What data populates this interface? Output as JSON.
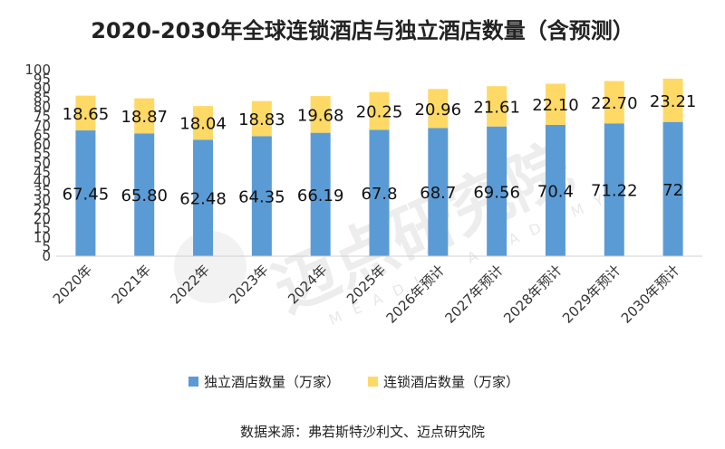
{
  "chart_data": {
    "type": "bar",
    "stacked": true,
    "title": "2020-2030年全球连锁酒店与独立酒店数量（含预测）",
    "categories": [
      "2020年",
      "2021年",
      "2022年",
      "2023年",
      "2024年",
      "2025年",
      "2026年预计",
      "2027年预计",
      "2028年预计",
      "2029年预计",
      "2030年预计"
    ],
    "series": [
      {
        "name": "独立酒店数量（万家）",
        "color": "#5b9bd5",
        "values": [
          67.45,
          65.8,
          62.48,
          64.35,
          66.19,
          67.8,
          68.7,
          69.56,
          70.4,
          71.22,
          72
        ],
        "labels": [
          "67.45",
          "65.80",
          "62.48",
          "64.35",
          "66.19",
          "67.8",
          "68.7",
          "69.56",
          "70.4",
          "71.22",
          "72"
        ]
      },
      {
        "name": "连锁酒店数量（万家）",
        "color": "#ffd966",
        "values": [
          18.65,
          18.87,
          18.04,
          18.83,
          19.68,
          20.25,
          20.96,
          21.61,
          22.1,
          22.7,
          23.21
        ],
        "labels": [
          "18.65",
          "18.87",
          "18.04",
          "18.83",
          "19.68",
          "20.25",
          "20.96",
          "21.61",
          "22.10",
          "22.70",
          "23.21"
        ]
      }
    ],
    "ylim": [
      0,
      100
    ],
    "yticks": [
      0,
      5,
      10,
      15,
      20,
      25,
      30,
      35,
      40,
      45,
      50,
      55,
      60,
      65,
      70,
      75,
      80,
      85,
      90,
      95,
      100
    ],
    "grid": false,
    "legend_position": "bottom"
  },
  "source": "数据来源：弗若斯特沙利文、迈点研究院",
  "watermark": {
    "text_cn": "迈点研究院",
    "text_en": "MEADIN ACADEMY"
  }
}
